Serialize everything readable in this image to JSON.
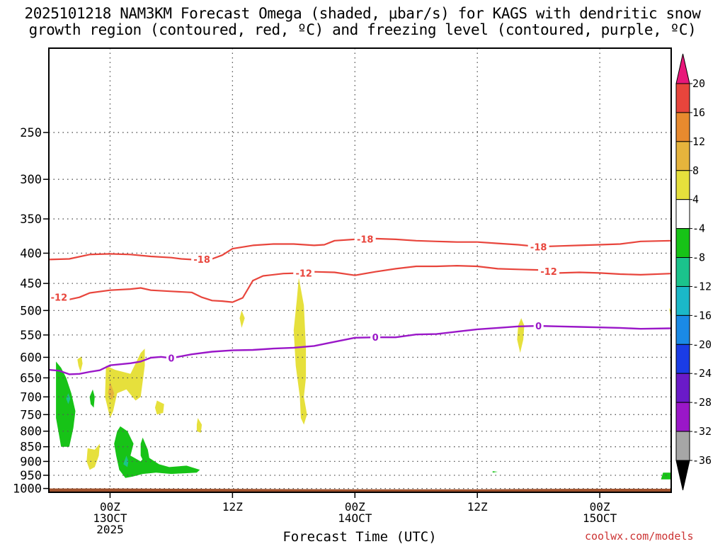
{
  "title_line1": "2025101218 NAM3KM Forecast Omega (shaded, μbar/s) for KAGS with dendritic snow",
  "title_line2": "growth region (contoured, red, ºC) and freezing level (contoured, purple, ºC)",
  "credit": "coolwx.com/models",
  "colors": {
    "temp_contour": "#e8453c",
    "freezing_contour": "#9a17c8",
    "ground": "#a0522d",
    "grid": "#555555"
  },
  "chart_data": {
    "type": "heatmap",
    "xlabel": "Forecast Time (UTC)",
    "ylabel": "",
    "x_range_hours": [
      -6,
      55
    ],
    "y_range_hpa": [
      180,
      1015
    ],
    "y_scale": "log-pressure (inverted)",
    "grid": true,
    "x_ticks": [
      {
        "hour": 0,
        "label": "00Z",
        "sub1": "13OCT",
        "sub2": "2025"
      },
      {
        "hour": 12,
        "label": "12Z",
        "sub1": "",
        "sub2": ""
      },
      {
        "hour": 24,
        "label": "00Z",
        "sub1": "14OCT",
        "sub2": ""
      },
      {
        "hour": 36,
        "label": "12Z",
        "sub1": "",
        "sub2": ""
      },
      {
        "hour": 48,
        "label": "00Z",
        "sub1": "15OCT",
        "sub2": ""
      }
    ],
    "y_ticks": [
      "250",
      "300",
      "350",
      "400",
      "450",
      "500",
      "550",
      "600",
      "650",
      "700",
      "750",
      "800",
      "850",
      "900",
      "950",
      "1000"
    ],
    "colorbar": {
      "labels": [
        "20",
        "16",
        "12",
        "8",
        "4",
        "-4",
        "-8",
        "-12",
        "-16",
        "-20",
        "-24",
        "-28",
        "-32",
        "-36"
      ],
      "bins": [
        {
          "color": "#e8177a"
        },
        {
          "color": "#e8453c"
        },
        {
          "color": "#e88a2e"
        },
        {
          "color": "#e6b43c"
        },
        {
          "color": "#e6e03c"
        },
        {
          "color": "#ffffff"
        },
        {
          "color": "#17c317"
        },
        {
          "color": "#1bc38c"
        },
        {
          "color": "#1bb8c8"
        },
        {
          "color": "#1a8ae6"
        },
        {
          "color": "#1a3ce6"
        },
        {
          "color": "#6a1ac8"
        },
        {
          "color": "#9a17c8"
        },
        {
          "color": "#a6a6a6"
        },
        {
          "color": "#000000"
        }
      ]
    },
    "contours": [
      {
        "label": "-18",
        "points": [
          [
            -6,
            410
          ],
          [
            -4,
            409
          ],
          [
            -2,
            402
          ],
          [
            0,
            401
          ],
          [
            2,
            402
          ],
          [
            4,
            405
          ],
          [
            6,
            407
          ],
          [
            7,
            409
          ],
          [
            8,
            410
          ],
          [
            10,
            409
          ],
          [
            11,
            403
          ],
          [
            12,
            393
          ],
          [
            14,
            388
          ],
          [
            16,
            386
          ],
          [
            18,
            386
          ],
          [
            20,
            388
          ],
          [
            21,
            387
          ],
          [
            22,
            381
          ],
          [
            24,
            379
          ],
          [
            26,
            378
          ],
          [
            28,
            379
          ],
          [
            30,
            381
          ],
          [
            32,
            382
          ],
          [
            34,
            383
          ],
          [
            36,
            383
          ],
          [
            38,
            385
          ],
          [
            40,
            387
          ],
          [
            42,
            390
          ],
          [
            44,
            389
          ],
          [
            46,
            388
          ],
          [
            48,
            387
          ],
          [
            50,
            386
          ],
          [
            52,
            382
          ],
          [
            55,
            381
          ]
        ],
        "label_hours": [
          9,
          25,
          42
        ]
      },
      {
        "label": "-12",
        "points": [
          [
            -6,
            473
          ],
          [
            -5,
            475
          ],
          [
            -4,
            479
          ],
          [
            -3,
            475
          ],
          [
            -2,
            467
          ],
          [
            0,
            462
          ],
          [
            2,
            460
          ],
          [
            3,
            458
          ],
          [
            4,
            462
          ],
          [
            6,
            464
          ],
          [
            8,
            466
          ],
          [
            9,
            475
          ],
          [
            10,
            481
          ],
          [
            11,
            482
          ],
          [
            12,
            484
          ],
          [
            13,
            476
          ],
          [
            14,
            445
          ],
          [
            15,
            437
          ],
          [
            17,
            433
          ],
          [
            19,
            432
          ],
          [
            20,
            430
          ],
          [
            22,
            431
          ],
          [
            24,
            436
          ],
          [
            26,
            430
          ],
          [
            28,
            425
          ],
          [
            30,
            421
          ],
          [
            32,
            421
          ],
          [
            34,
            420
          ],
          [
            36,
            421
          ],
          [
            38,
            425
          ],
          [
            40,
            426
          ],
          [
            42,
            427
          ],
          [
            44,
            432
          ],
          [
            46,
            431
          ],
          [
            48,
            432
          ],
          [
            50,
            434
          ],
          [
            52,
            435
          ],
          [
            55,
            433
          ]
        ],
        "label_hours": [
          -5,
          19,
          43
        ]
      },
      {
        "label": "0",
        "points": [
          [
            -6,
            630
          ],
          [
            -5,
            632
          ],
          [
            -4,
            641
          ],
          [
            -3,
            640
          ],
          [
            -2,
            635
          ],
          [
            -1,
            631
          ],
          [
            0,
            619
          ],
          [
            2,
            614
          ],
          [
            3,
            610
          ],
          [
            4,
            601
          ],
          [
            5,
            599
          ],
          [
            6,
            602
          ],
          [
            8,
            593
          ],
          [
            10,
            587
          ],
          [
            12,
            584
          ],
          [
            14,
            583
          ],
          [
            16,
            580
          ],
          [
            18,
            578
          ],
          [
            20,
            574
          ],
          [
            22,
            565
          ],
          [
            24,
            556
          ],
          [
            26,
            555
          ],
          [
            28,
            555
          ],
          [
            30,
            549
          ],
          [
            32,
            548
          ],
          [
            34,
            543
          ],
          [
            36,
            538
          ],
          [
            38,
            535
          ],
          [
            40,
            532
          ],
          [
            42,
            531
          ],
          [
            44,
            532
          ],
          [
            46,
            533
          ],
          [
            48,
            534
          ],
          [
            50,
            535
          ],
          [
            52,
            537
          ],
          [
            55,
            536
          ]
        ],
        "label_hours": [
          6,
          26,
          42
        ]
      }
    ],
    "shaded_regions": [
      {
        "value": -6,
        "points": [
          [
            -5.3,
            610
          ],
          [
            -4.8,
            625
          ],
          [
            -4.3,
            650
          ],
          [
            -3.8,
            690
          ],
          [
            -3.4,
            740
          ],
          [
            -3.6,
            790
          ],
          [
            -4.0,
            850
          ],
          [
            -4.8,
            850
          ],
          [
            -5.3,
            760
          ]
        ]
      },
      {
        "value": -10,
        "points": [
          [
            -4.1,
            690
          ],
          [
            -3.9,
            705
          ],
          [
            -4.1,
            720
          ],
          [
            -4.3,
            705
          ]
        ]
      },
      {
        "value": -6,
        "points": [
          [
            -1.7,
            680
          ],
          [
            -1.5,
            700
          ],
          [
            -1.6,
            730
          ],
          [
            -1.9,
            720
          ],
          [
            -2.0,
            700
          ]
        ]
      },
      {
        "value": -6,
        "points": [
          [
            1.0,
            785
          ],
          [
            1.7,
            800
          ],
          [
            2.3,
            840
          ],
          [
            2.0,
            880
          ],
          [
            3.0,
            900
          ],
          [
            3.5,
            880
          ],
          [
            4.8,
            910
          ],
          [
            5.8,
            920
          ],
          [
            7.5,
            915
          ],
          [
            8.8,
            930
          ],
          [
            8.5,
            940
          ],
          [
            6.0,
            945
          ],
          [
            4.5,
            940
          ],
          [
            3.2,
            945
          ],
          [
            2.2,
            955
          ],
          [
            1.5,
            960
          ],
          [
            0.9,
            930
          ],
          [
            0.6,
            880
          ],
          [
            0.4,
            840
          ],
          [
            0.7,
            800
          ]
        ]
      },
      {
        "value": -6,
        "points": [
          [
            3.2,
            820
          ],
          [
            3.7,
            860
          ],
          [
            3.9,
            900
          ],
          [
            3.4,
            910
          ],
          [
            3.0,
            880
          ],
          [
            3.0,
            840
          ]
        ]
      },
      {
        "value": -12,
        "points": [
          [
            1.6,
            880
          ],
          [
            1.8,
            900
          ],
          [
            1.7,
            920
          ],
          [
            1.3,
            910
          ]
        ]
      },
      {
        "value": -6,
        "points": [
          [
            37.5,
            935
          ],
          [
            38.0,
            937
          ],
          [
            37.5,
            940
          ]
        ]
      },
      {
        "value": -6,
        "points": [
          [
            54.2,
            940
          ],
          [
            55,
            940
          ],
          [
            55,
            965
          ],
          [
            54.0,
            965
          ]
        ]
      },
      {
        "value": 6,
        "points": [
          [
            -2.8,
            598
          ],
          [
            -2.7,
            615
          ],
          [
            -2.9,
            635
          ],
          [
            -3.1,
            620
          ],
          [
            -3.2,
            605
          ]
        ]
      },
      {
        "value": 6,
        "points": [
          [
            -0.4,
            620
          ],
          [
            0.5,
            630
          ],
          [
            2.0,
            640
          ],
          [
            3.0,
            590
          ],
          [
            3.4,
            580
          ],
          [
            3.4,
            620
          ],
          [
            3.0,
            700
          ],
          [
            2.5,
            710
          ],
          [
            1.6,
            680
          ],
          [
            0.7,
            690
          ],
          [
            0.3,
            740
          ],
          [
            0.0,
            760
          ],
          [
            -0.5,
            700
          ]
        ]
      },
      {
        "value": 10,
        "points": [
          [
            0.0,
            660
          ],
          [
            0.4,
            690
          ],
          [
            0.2,
            710
          ],
          [
            -0.2,
            690
          ]
        ]
      },
      {
        "value": 6,
        "points": [
          [
            4.6,
            710
          ],
          [
            5.3,
            720
          ],
          [
            5.2,
            745
          ],
          [
            4.6,
            750
          ],
          [
            4.4,
            730
          ]
        ]
      },
      {
        "value": 6,
        "points": [
          [
            8.6,
            760
          ],
          [
            9.0,
            780
          ],
          [
            8.9,
            805
          ],
          [
            8.5,
            800
          ],
          [
            8.5,
            780
          ]
        ]
      },
      {
        "value": 6,
        "points": [
          [
            -2.2,
            855
          ],
          [
            -1.5,
            860
          ],
          [
            -1.0,
            840
          ],
          [
            -1.1,
            880
          ],
          [
            -1.5,
            920
          ],
          [
            -2.0,
            930
          ],
          [
            -2.3,
            900
          ]
        ]
      },
      {
        "value": 6,
        "points": [
          [
            12.9,
            500
          ],
          [
            13.2,
            515
          ],
          [
            12.9,
            535
          ],
          [
            12.7,
            515
          ]
        ]
      },
      {
        "value": 6,
        "points": [
          [
            18.5,
            440
          ],
          [
            19.0,
            490
          ],
          [
            19.2,
            580
          ],
          [
            19.2,
            650
          ],
          [
            19.0,
            700
          ],
          [
            19.3,
            750
          ],
          [
            19.0,
            780
          ],
          [
            18.7,
            760
          ],
          [
            18.6,
            700
          ],
          [
            18.2,
            620
          ],
          [
            18.0,
            540
          ],
          [
            18.3,
            480
          ]
        ]
      },
      {
        "value": 6,
        "points": [
          [
            40.3,
            515
          ],
          [
            40.6,
            530
          ],
          [
            40.5,
            560
          ],
          [
            40.2,
            590
          ],
          [
            39.9,
            560
          ],
          [
            40.0,
            530
          ]
        ]
      },
      {
        "value": 6,
        "points": [
          [
            54.8,
            495
          ],
          [
            55,
            500
          ],
          [
            55,
            520
          ]
        ]
      }
    ],
    "ground": {
      "points": [
        [
          -6,
          1000
        ],
        [
          0,
          1000
        ],
        [
          8,
          1001
        ],
        [
          14,
          1002
        ],
        [
          24,
          1003
        ],
        [
          36,
          1003
        ],
        [
          42,
          1002
        ],
        [
          48,
          1001
        ],
        [
          55,
          1001
        ]
      ]
    }
  }
}
